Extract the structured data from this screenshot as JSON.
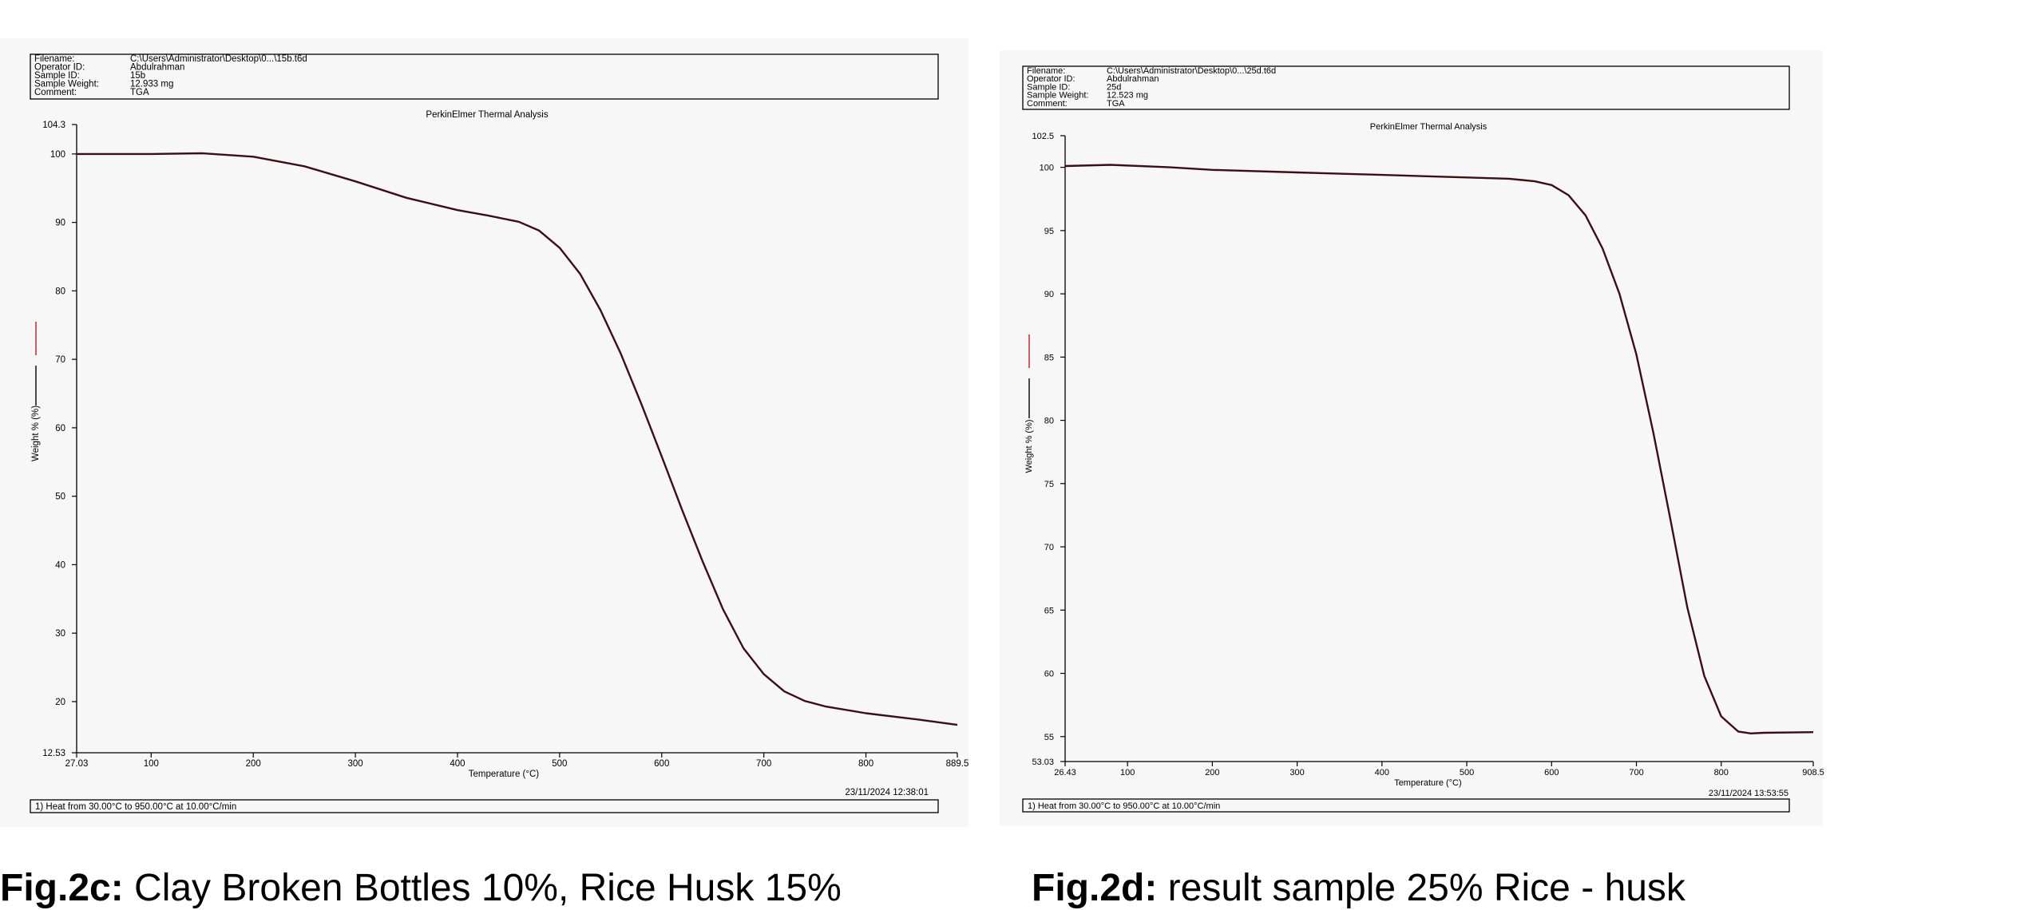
{
  "figures": [
    {
      "caption_label": "Fig.2c:",
      "caption_text": "Clay Broken Bottles 10%, Rice Husk 15%",
      "info": {
        "rows": [
          {
            "key": "Filename:",
            "value": "C:\\Users\\Administrator\\Desktop\\0...\\15b.t6d"
          },
          {
            "key": "Operator ID:",
            "value": "Abdulrahman"
          },
          {
            "key": "Sample ID:",
            "value": "15b"
          },
          {
            "key": "Sample Weight:",
            "value": "12.933 mg"
          },
          {
            "key": "Comment:",
            "value": "TGA"
          }
        ]
      },
      "timestamp": "23/11/2024 12:38:01",
      "method": "1)  Heat from 30.00°C to 950.00°C at 10.00°C/min"
    },
    {
      "caption_label": "Fig.2d:",
      "caption_text": "result sample 25% Rice - husk",
      "info": {
        "rows": [
          {
            "key": "Filename:",
            "value": "C:\\Users\\Administrator\\Desktop\\0...\\25d.t6d"
          },
          {
            "key": "Operator ID:",
            "value": "Abdulrahman"
          },
          {
            "key": "Sample ID:",
            "value": "25d"
          },
          {
            "key": "Sample Weight:",
            "value": "12.523 mg"
          },
          {
            "key": "Comment:",
            "value": "TGA"
          }
        ]
      },
      "timestamp": "23/11/2024 13:53:55",
      "method": "1)  Heat from 30.00°C to 950.00°C at 10.00°C/min"
    }
  ],
  "chart_data": [
    {
      "type": "line",
      "title": "PerkinElmer Thermal Analysis",
      "xlabel": "Temperature (°C)",
      "ylabel": "Weight % (%)",
      "xlim": [
        27.03,
        889.5
      ],
      "ylim": [
        12.53,
        104.3
      ],
      "x_ticks": [
        27.03,
        100,
        200,
        300,
        400,
        500,
        600,
        700,
        800,
        889.5
      ],
      "x_tick_labels": [
        "27.03",
        "100",
        "200",
        "300",
        "400",
        "500",
        "600",
        "700",
        "800",
        "889.5"
      ],
      "y_ticks": [
        12.53,
        20,
        30,
        40,
        50,
        60,
        70,
        80,
        90,
        100,
        104.3
      ],
      "y_tick_labels": [
        "12.53",
        "20",
        "30",
        "40",
        "50",
        "60",
        "70",
        "80",
        "90",
        "100",
        "104.3"
      ],
      "grid": false,
      "series_color": "#3a0f14",
      "series": [
        {
          "x": [
            27.03,
            100,
            150,
            200,
            250,
            300,
            350,
            400,
            430,
            460,
            480,
            500,
            520,
            540,
            560,
            580,
            600,
            620,
            640,
            660,
            680,
            700,
            720,
            740,
            760,
            800,
            850,
            889.5
          ],
          "y": [
            100,
            100,
            100.1,
            99.6,
            98.2,
            96.0,
            93.6,
            91.8,
            91.0,
            90.1,
            88.8,
            86.3,
            82.5,
            77.2,
            70.8,
            63.5,
            55.8,
            48.0,
            40.5,
            33.5,
            27.8,
            24.0,
            21.5,
            20.1,
            19.3,
            18.3,
            17.4,
            16.6
          ]
        }
      ]
    },
    {
      "type": "line",
      "title": "PerkinElmer Thermal Analysis",
      "xlabel": "Temperature (°C)",
      "ylabel": "Weight % (%)",
      "xlim": [
        26.43,
        908.5
      ],
      "ylim": [
        53.03,
        102.5
      ],
      "x_ticks": [
        26.43,
        100,
        200,
        300,
        400,
        500,
        600,
        700,
        800,
        908.5
      ],
      "x_tick_labels": [
        "26.43",
        "100",
        "200",
        "300",
        "400",
        "500",
        "600",
        "700",
        "800",
        "908.5"
      ],
      "y_ticks": [
        53.03,
        55,
        60,
        65,
        70,
        75,
        80,
        85,
        90,
        95,
        100,
        102.5
      ],
      "y_tick_labels": [
        "53.03",
        "55",
        "60",
        "65",
        "70",
        "75",
        "80",
        "85",
        "90",
        "95",
        "100",
        "102.5"
      ],
      "grid": false,
      "series_color": "#3a0f14",
      "series": [
        {
          "x": [
            26.43,
            80,
            150,
            200,
            300,
            400,
            500,
            550,
            580,
            600,
            620,
            640,
            660,
            680,
            700,
            720,
            740,
            760,
            780,
            800,
            820,
            835,
            850,
            908.5
          ],
          "y": [
            100.1,
            100.2,
            100.0,
            99.8,
            99.6,
            99.4,
            99.2,
            99.1,
            98.9,
            98.6,
            97.8,
            96.2,
            93.6,
            90.0,
            85.2,
            79.0,
            72.2,
            65.2,
            59.8,
            56.6,
            55.4,
            55.25,
            55.3,
            55.35
          ]
        }
      ]
    }
  ]
}
